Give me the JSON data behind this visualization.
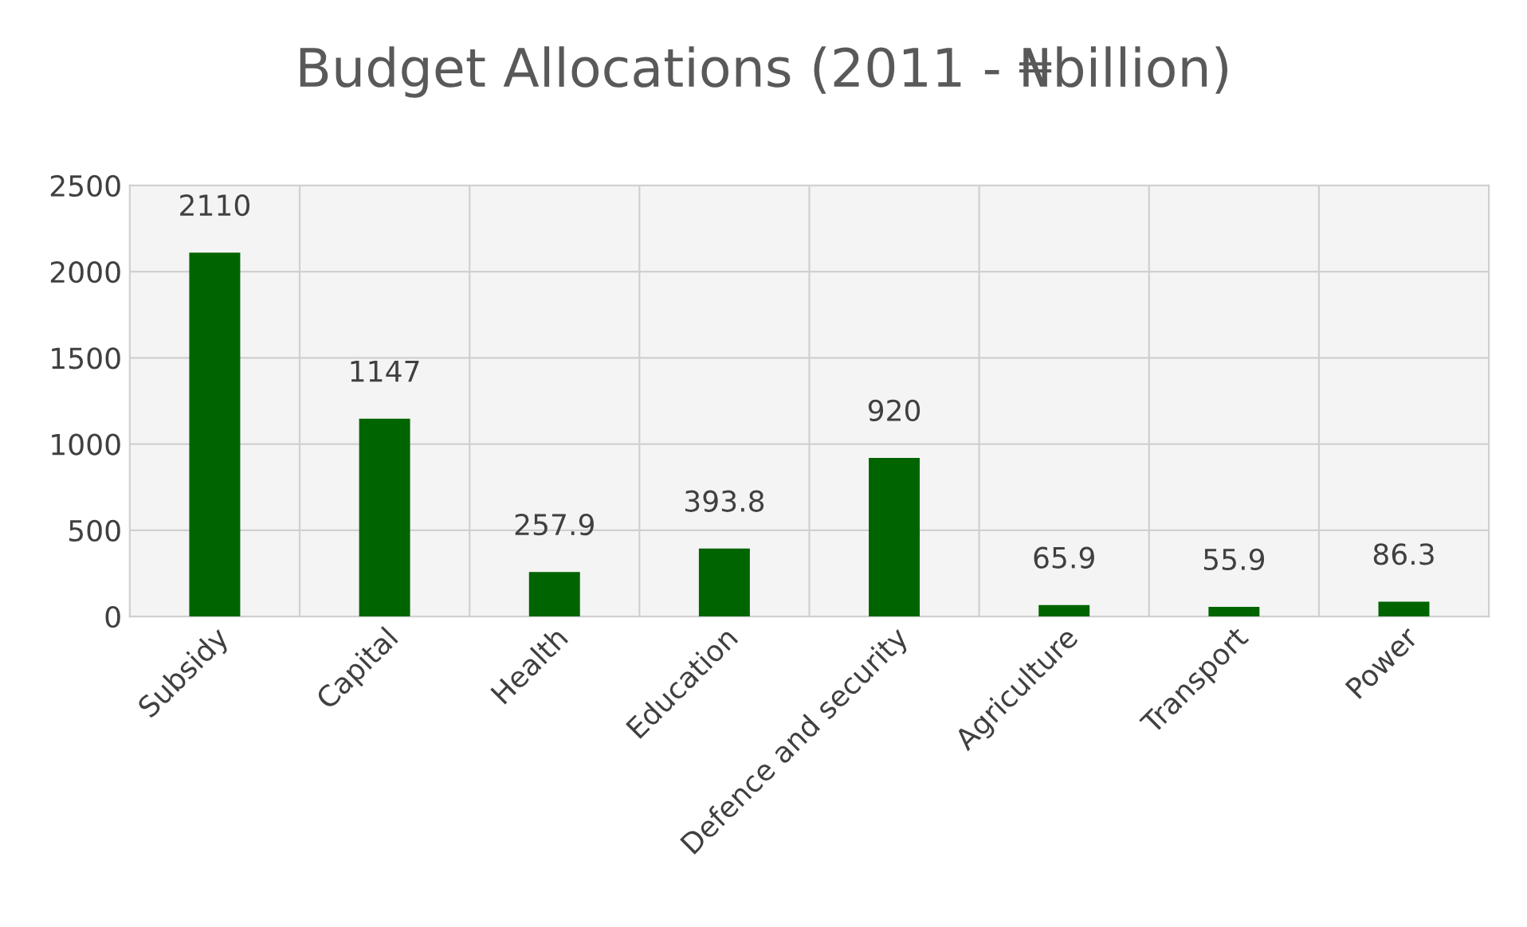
{
  "chart_data": {
    "type": "bar",
    "title": "Budget Allocations (2011 - ₦billion)",
    "categories": [
      "Subsidy",
      "Capital",
      "Health",
      "Education",
      "Defence and security",
      "Agriculture",
      "Transport",
      "Power"
    ],
    "values": [
      2110,
      1147,
      257.9,
      393.8,
      920,
      65.9,
      55.9,
      86.3
    ],
    "color": "#006400",
    "data_labels": true,
    "ylim": [
      0,
      2500
    ],
    "yticks": [
      0,
      500,
      1000,
      1500,
      2000,
      2500
    ],
    "grid": true
  }
}
